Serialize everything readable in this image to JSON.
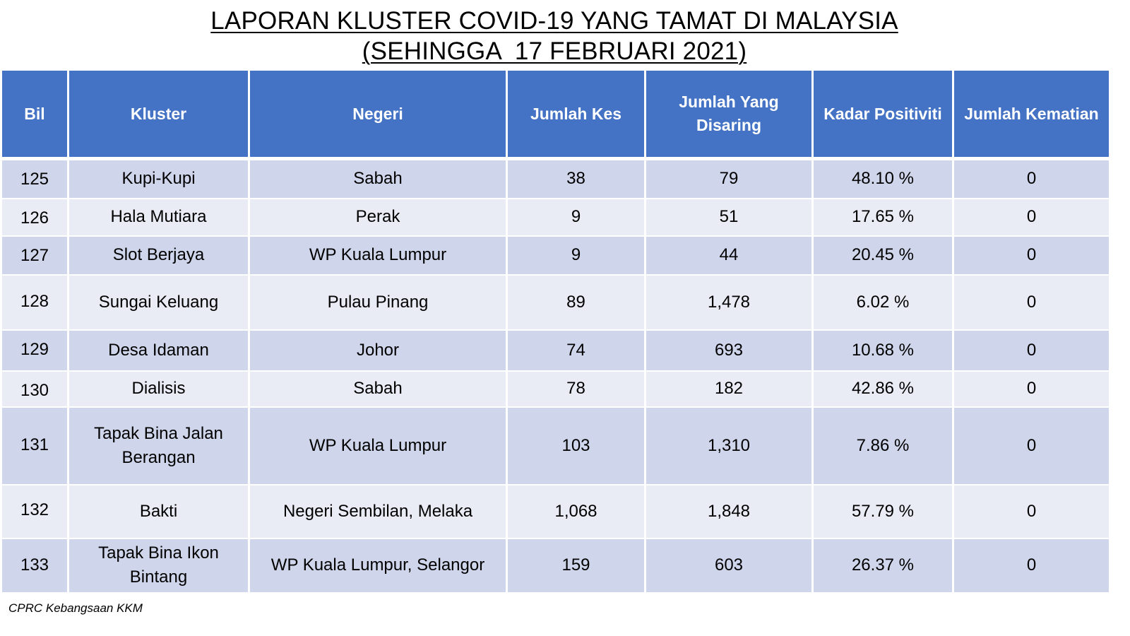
{
  "title": {
    "line1": "LAPORAN KLUSTER COVID-19 YANG TAMAT DI MALAYSIA",
    "line2": "(SEHINGGA  17 FEBRUARI 2021)"
  },
  "table": {
    "headers": {
      "bil": "Bil",
      "kluster": "Kluster",
      "negeri": "Negeri",
      "jumlah_kes": "Jumlah Kes",
      "jumlah_disaring": "Jumlah Yang Disaring",
      "kadar_positiviti": "Kadar Positiviti",
      "jumlah_kematian": "Jumlah Kematian"
    },
    "rows": [
      {
        "bil": "125",
        "kluster": "Kupi-Kupi",
        "negeri": "Sabah",
        "kes": "38",
        "disaring": "79",
        "positiviti": "48.10 %",
        "kematian": "0"
      },
      {
        "bil": "126",
        "kluster": "Hala Mutiara",
        "negeri": "Perak",
        "kes": "9",
        "disaring": "51",
        "positiviti": "17.65 %",
        "kematian": "0"
      },
      {
        "bil": "127",
        "kluster": "Slot Berjaya",
        "negeri": "WP Kuala Lumpur",
        "kes": "9",
        "disaring": "44",
        "positiviti": "20.45 %",
        "kematian": "0"
      },
      {
        "bil": "128",
        "kluster": "Sungai Keluang",
        "negeri": "Pulau Pinang",
        "kes": "89",
        "disaring": "1,478",
        "positiviti": "6.02 %",
        "kematian": "0"
      },
      {
        "bil": "129",
        "kluster": "Desa Idaman",
        "negeri": "Johor",
        "kes": "74",
        "disaring": "693",
        "positiviti": "10.68 %",
        "kematian": "0"
      },
      {
        "bil": "130",
        "kluster": "Dialisis",
        "negeri": "Sabah",
        "kes": "78",
        "disaring": "182",
        "positiviti": "42.86 %",
        "kematian": "0"
      },
      {
        "bil": "131",
        "kluster": "Tapak Bina Jalan Berangan",
        "negeri": "WP Kuala Lumpur",
        "kes": "103",
        "disaring": "1,310",
        "positiviti": "7.86 %",
        "kematian": "0"
      },
      {
        "bil": "132",
        "kluster": "Bakti",
        "negeri": "Negeri Sembilan, Melaka",
        "kes": "1,068",
        "disaring": "1,848",
        "positiviti": "57.79 %",
        "kematian": "0"
      },
      {
        "bil": "133",
        "kluster": "Tapak Bina Ikon Bintang",
        "negeri": "WP Kuala Lumpur, Selangor",
        "kes": "159",
        "disaring": "603",
        "positiviti": "26.37 %",
        "kematian": "0"
      }
    ]
  },
  "source": "CPRC Kebangsaan KKM",
  "colors": {
    "header_bg": "#4472c4",
    "row_odd": "#cfd5ea",
    "row_even": "#e9ebf5"
  }
}
